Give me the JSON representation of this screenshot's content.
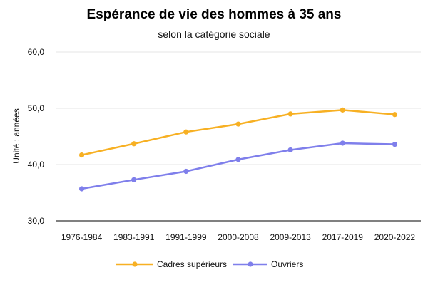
{
  "chart_data": {
    "type": "line",
    "title": "Espérance de vie des hommes à 35 ans",
    "subtitle": "selon la catégorie sociale",
    "ylabel": "Unité : années",
    "xlabel": "",
    "categories": [
      "1976-1984",
      "1983-1991",
      "1991-1999",
      "2000-2008",
      "2009-2013",
      "2017-2019",
      "2020-2022"
    ],
    "y_ticks": [
      "60,0",
      "50,0",
      "40,0",
      "30,0"
    ],
    "y_tick_values": [
      60,
      50,
      40,
      30
    ],
    "ylim": [
      30,
      60
    ],
    "grid": true,
    "legend_position": "bottom",
    "series": [
      {
        "name": "Cadres supérieurs",
        "color": "#F7B023",
        "values": [
          41.7,
          43.7,
          45.8,
          47.2,
          49.0,
          49.7,
          48.9
        ]
      },
      {
        "name": "Ouvriers",
        "color": "#7F7FEB",
        "values": [
          35.7,
          37.3,
          38.8,
          40.9,
          42.6,
          43.8,
          43.6
        ]
      }
    ]
  }
}
